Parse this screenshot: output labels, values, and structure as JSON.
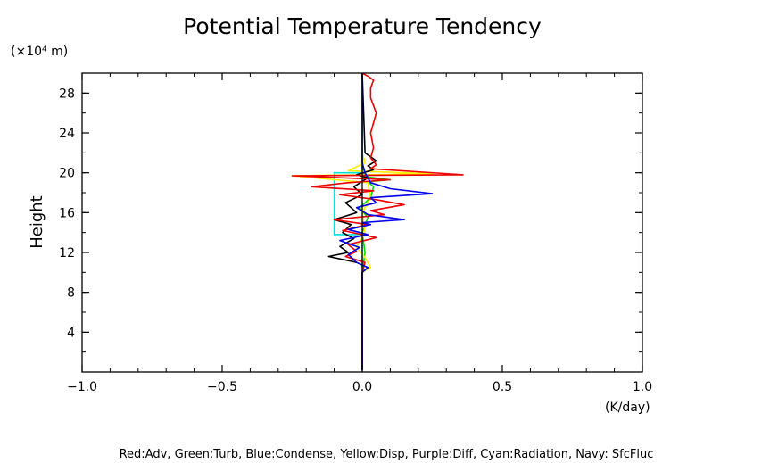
{
  "chart_data": {
    "type": "line",
    "title": "Potential Temperature Tendency",
    "ylabel": "Height",
    "yunit_label": "(×10⁴ m)",
    "xunit_label": "(K/day)",
    "xlim": [
      -1.0,
      1.0
    ],
    "ylim": [
      0,
      30
    ],
    "x_ticks": [
      "-1.0",
      "-0.5",
      "0.0",
      "0.5",
      "1.0"
    ],
    "y_ticks": [
      "4",
      "8",
      "12",
      "16",
      "20",
      "24",
      "28"
    ],
    "footnote": "Red:Adv, Green:Turb, Blue:Condense, Yellow:Disp, Purple:Diff, Cyan:Radiation, Navy: SfcFluc",
    "series": [
      {
        "name": "Cyan:Radiation",
        "color": "#00e0e0",
        "x": [
          0.0,
          0.0,
          -0.1,
          -0.1,
          -0.1,
          -0.1,
          0.0,
          0.0
        ],
        "y": [
          0.2,
          13.8,
          13.8,
          16.0,
          18.0,
          20.0,
          20.0,
          30.0
        ]
      },
      {
        "name": "Green:Turb",
        "color": "#00dd00",
        "x": [
          0.0,
          0.0,
          0.01,
          0.0,
          0.02,
          -0.01,
          0.03,
          0.04,
          0.02,
          0.1,
          0.01,
          0.0,
          0.0
        ],
        "y": [
          0.2,
          10.0,
          12.0,
          14.0,
          15.5,
          16.5,
          17.5,
          18.6,
          19.1,
          19.3,
          19.6,
          20.5,
          30.0
        ]
      },
      {
        "name": "Yellow:Disp",
        "color": "#ffee00",
        "x": [
          0.0,
          0.0,
          0.03,
          0.01,
          -0.02,
          0.01,
          0.0,
          0.03,
          0.02,
          -0.25,
          0.25,
          -0.05,
          0.01,
          0.0,
          0.0
        ],
        "y": [
          0.2,
          10.0,
          10.5,
          11.5,
          12.5,
          14.0,
          16.0,
          17.5,
          19.0,
          19.7,
          19.9,
          20.2,
          21.0,
          22.0,
          30.0
        ]
      },
      {
        "name": "Black",
        "color": "#000000",
        "x": [
          0.0,
          0.0,
          0.02,
          -0.02,
          -0.12,
          -0.05,
          -0.08,
          -0.03,
          -0.07,
          -0.04,
          -0.1,
          -0.02,
          -0.06,
          0.0,
          -0.03,
          0.02,
          -0.02,
          0.04,
          0.02,
          0.05,
          0.01,
          0.0
        ],
        "y": [
          0.2,
          10.0,
          10.5,
          11.0,
          11.6,
          12.0,
          12.6,
          13.4,
          14.0,
          14.8,
          15.3,
          16.0,
          17.0,
          17.8,
          18.6,
          19.5,
          19.8,
          20.3,
          20.7,
          21.2,
          22.0,
          30.0
        ]
      },
      {
        "name": "Red:Adv",
        "color": "#ee0000",
        "x": [
          0.0,
          0.0,
          0.01,
          -0.06,
          -0.02,
          -0.05,
          0.05,
          -0.07,
          0.02,
          -0.1,
          0.08,
          0.03,
          0.15,
          0.05,
          -0.08,
          0.04,
          -0.18,
          -0.05,
          0.1,
          -0.25,
          0.36,
          0.03,
          0.05,
          0.03,
          0.04,
          0.03,
          0.05,
          0.03,
          0.03,
          0.04,
          0.02,
          0.0
        ],
        "y": [
          0.2,
          10.0,
          11.0,
          11.6,
          12.1,
          12.8,
          13.5,
          14.2,
          14.8,
          15.3,
          15.8,
          16.2,
          16.8,
          17.3,
          17.8,
          18.2,
          18.6,
          19.0,
          19.3,
          19.7,
          19.8,
          20.4,
          20.8,
          21.5,
          22.5,
          24.0,
          26.0,
          27.5,
          28.5,
          29.3,
          29.7,
          30.0
        ]
      },
      {
        "name": "Blue:Condense",
        "color": "#0000ee",
        "x": [
          0.0,
          0.0,
          0.02,
          -0.02,
          -0.05,
          -0.01,
          -0.08,
          0.02,
          -0.05,
          0.03,
          0.0,
          0.15,
          0.02,
          -0.02,
          0.05,
          0.03,
          0.25,
          0.1,
          0.03,
          0.01,
          0.0,
          0.0
        ],
        "y": [
          0.2,
          10.0,
          10.5,
          11.0,
          11.8,
          12.5,
          13.2,
          13.8,
          14.3,
          14.8,
          15.0,
          15.3,
          15.8,
          16.5,
          17.0,
          17.5,
          17.9,
          18.4,
          19.0,
          20.0,
          21.0,
          30.0
        ]
      }
    ]
  }
}
